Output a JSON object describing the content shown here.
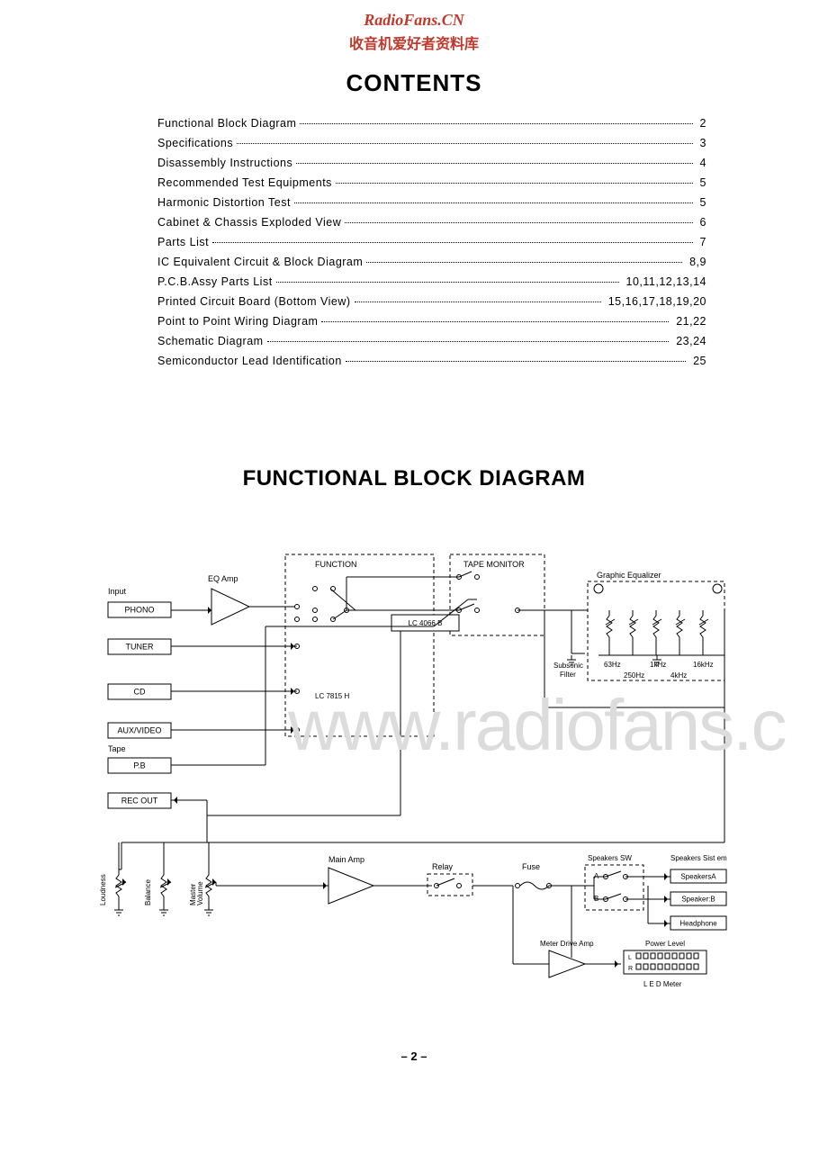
{
  "watermark": {
    "url": "RadioFans.CN",
    "cn": "收音机爱好者资料库",
    "bg": "www.radiofans.c"
  },
  "titles": {
    "contents": "CONTENTS",
    "block_diagram": "FUNCTIONAL BLOCK DIAGRAM"
  },
  "page_number": "– 2 –",
  "toc": [
    {
      "label": "Functional Block Diagram",
      "page": "2"
    },
    {
      "label": "Specifications",
      "page": "3"
    },
    {
      "label": "Disassembly Instructions",
      "page": "4"
    },
    {
      "label": "Recommended Test Equipments",
      "page": "5"
    },
    {
      "label": "Harmonic Distortion Test",
      "page": "5"
    },
    {
      "label": "Cabinet & Chassis Exploded View",
      "page": "6"
    },
    {
      "label": "Parts List",
      "page": "7"
    },
    {
      "label": "IC Equivalent Circuit & Block Diagram",
      "page": "8,9"
    },
    {
      "label": "P.C.B.Assy Parts List",
      "page": "10,11,12,13,14"
    },
    {
      "label": "Printed Circuit Board (Bottom View)",
      "page": "15,16,17,18,19,20"
    },
    {
      "label": "Point to Point Wiring Diagram",
      "page": "21,22"
    },
    {
      "label": "Schematic Diagram",
      "page": "23,24"
    },
    {
      "label": "Semiconductor Lead Identification",
      "page": "25"
    }
  ],
  "diagram": {
    "labels": {
      "input": "Input",
      "function": "FUNCTION",
      "tape_monitor": "TAPE MONITOR",
      "eq_amp": "EQ Amp",
      "graphic_eq": "Graphic Equalizer",
      "ic1": "LC 4066 B",
      "ic2": "LC 7815 H",
      "subsonic": "Subsonic",
      "filter": "Filter",
      "freq": [
        "63Hz",
        "1kHz",
        "16kHz",
        "250Hz",
        "4kHz"
      ],
      "tape": "Tape",
      "main_amp": "Main Amp",
      "relay": "Relay",
      "fuse": "Fuse",
      "speakers_sw": "Speakers SW",
      "speakers_sys": "Speakers Sist em",
      "loudness": "Loudness",
      "balance": "Balance",
      "master_vol": "Master\nVolume",
      "a": "A",
      "b": "B",
      "spk_a": "SpeakersA",
      "spk_b": "Speaker:B",
      "headphone": "Headphone",
      "meter_drive": "Meter Drive Amp",
      "power_level": "Power Level",
      "l": "L",
      "r": "R",
      "led_meter": "L E D  Meter"
    },
    "inputs": [
      "PHONO",
      "TUNER",
      "CD",
      "AUX/VIDEO",
      "P.B",
      "REC OUT"
    ],
    "colors": {
      "line": "#000000",
      "dash": "#000000",
      "bg": "#ffffff"
    }
  }
}
